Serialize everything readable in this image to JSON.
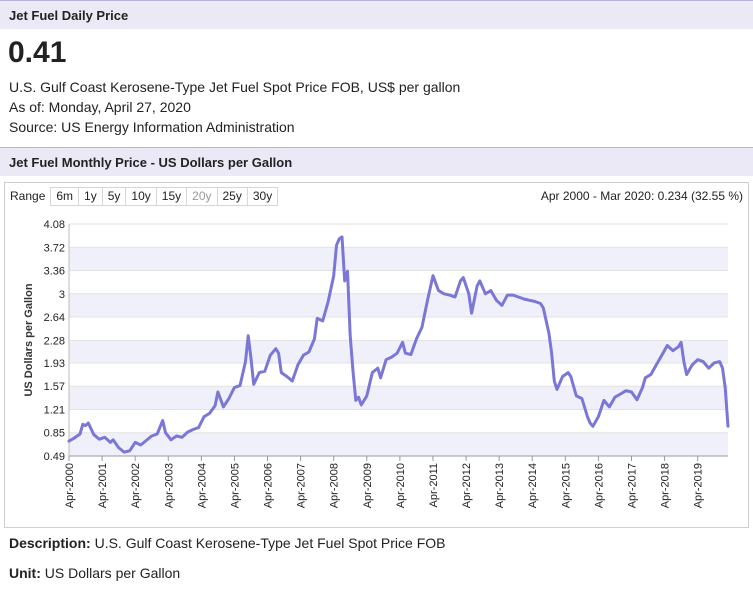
{
  "daily": {
    "header": "Jet Fuel Daily Price",
    "price": "0.41",
    "description": "U.S. Gulf Coast Kerosene-Type Jet Fuel Spot Price FOB, US$ per gallon",
    "as_of": "As of: Monday, April 27, 2020",
    "source": "Source: US Energy Information Administration"
  },
  "monthly": {
    "header": "Jet Fuel Monthly Price - US Dollars per Gallon",
    "range_label": "Range",
    "range_buttons": [
      "6m",
      "1y",
      "5y",
      "10y",
      "15y",
      "20y",
      "25y",
      "30y"
    ],
    "range_summary": "Apr 2000 - Mar 2020: 0.234 (32.55 %)"
  },
  "footer": {
    "description_label": "Description:",
    "description_value": "U.S. Gulf Coast Kerosene-Type Jet Fuel Spot Price FOB",
    "unit_label": "Unit:",
    "unit_value": "US Dollars per Gallon"
  },
  "colors": {
    "line": "#7b77d6",
    "band": "#f0f0fa",
    "header_bg": "#ebe9f5"
  },
  "chart_data": {
    "type": "line",
    "title": "",
    "xlabel": "",
    "ylabel": "US Dollars per Gallon",
    "ylim": [
      0.49,
      4.08
    ],
    "yticks": [
      "0.49",
      "0.85",
      "1.21",
      "1.57",
      "1.93",
      "2.28",
      "2.64",
      "3",
      "3.36",
      "3.72",
      "4.08"
    ],
    "xticks": [
      "Apr-2000",
      "Apr-2001",
      "Apr-2002",
      "Apr-2003",
      "Apr-2004",
      "Apr-2005",
      "Apr-2006",
      "Apr-2007",
      "Apr-2008",
      "Apr-2009",
      "Apr-2010",
      "Apr-2011",
      "Apr-2012",
      "Apr-2013",
      "Apr-2014",
      "Apr-2015",
      "Apr-2016",
      "Apr-2017",
      "Apr-2018",
      "Apr-2019"
    ],
    "x_range": [
      "2000-04",
      "2020-03"
    ],
    "grid": "horizontal bands",
    "series": [
      {
        "points": [
          [
            "2000-04",
            0.72
          ],
          [
            "2000-06",
            0.77
          ],
          [
            "2000-08",
            0.83
          ],
          [
            "2000-09",
            0.98
          ],
          [
            "2000-10",
            0.96
          ],
          [
            "2000-11",
            1.0
          ],
          [
            "2001-01",
            0.82
          ],
          [
            "2001-03",
            0.75
          ],
          [
            "2001-05",
            0.78
          ],
          [
            "2001-07",
            0.7
          ],
          [
            "2001-08",
            0.74
          ],
          [
            "2001-10",
            0.62
          ],
          [
            "2001-12",
            0.55
          ],
          [
            "2002-02",
            0.57
          ],
          [
            "2002-04",
            0.7
          ],
          [
            "2002-06",
            0.66
          ],
          [
            "2002-08",
            0.73
          ],
          [
            "2002-10",
            0.8
          ],
          [
            "2002-12",
            0.83
          ],
          [
            "2003-02",
            1.04
          ],
          [
            "2003-03",
            0.85
          ],
          [
            "2003-05",
            0.74
          ],
          [
            "2003-07",
            0.8
          ],
          [
            "2003-09",
            0.78
          ],
          [
            "2003-11",
            0.86
          ],
          [
            "2004-01",
            0.9
          ],
          [
            "2004-03",
            0.93
          ],
          [
            "2004-05",
            1.1
          ],
          [
            "2004-07",
            1.15
          ],
          [
            "2004-09",
            1.27
          ],
          [
            "2004-10",
            1.48
          ],
          [
            "2004-12",
            1.25
          ],
          [
            "2005-02",
            1.38
          ],
          [
            "2005-04",
            1.55
          ],
          [
            "2005-06",
            1.58
          ],
          [
            "2005-08",
            1.95
          ],
          [
            "2005-09",
            2.35
          ],
          [
            "2005-10",
            2.0
          ],
          [
            "2005-11",
            1.6
          ],
          [
            "2006-01",
            1.78
          ],
          [
            "2006-03",
            1.8
          ],
          [
            "2006-05",
            2.05
          ],
          [
            "2006-07",
            2.15
          ],
          [
            "2006-08",
            2.08
          ],
          [
            "2006-09",
            1.78
          ],
          [
            "2006-11",
            1.72
          ],
          [
            "2007-01",
            1.65
          ],
          [
            "2007-03",
            1.9
          ],
          [
            "2007-05",
            2.05
          ],
          [
            "2007-07",
            2.1
          ],
          [
            "2007-09",
            2.3
          ],
          [
            "2007-10",
            2.62
          ],
          [
            "2007-12",
            2.58
          ],
          [
            "2008-02",
            2.88
          ],
          [
            "2008-04",
            3.28
          ],
          [
            "2008-05",
            3.75
          ],
          [
            "2008-06",
            3.85
          ],
          [
            "2008-07",
            3.88
          ],
          [
            "2008-08",
            3.2
          ],
          [
            "2008-09",
            3.35
          ],
          [
            "2008-10",
            2.35
          ],
          [
            "2008-11",
            1.8
          ],
          [
            "2008-12",
            1.35
          ],
          [
            "2009-01",
            1.4
          ],
          [
            "2009-02",
            1.28
          ],
          [
            "2009-04",
            1.42
          ],
          [
            "2009-06",
            1.78
          ],
          [
            "2009-08",
            1.85
          ],
          [
            "2009-09",
            1.7
          ],
          [
            "2009-11",
            1.98
          ],
          [
            "2010-01",
            2.02
          ],
          [
            "2010-03",
            2.08
          ],
          [
            "2010-05",
            2.25
          ],
          [
            "2010-06",
            2.08
          ],
          [
            "2010-08",
            2.06
          ],
          [
            "2010-10",
            2.3
          ],
          [
            "2010-12",
            2.48
          ],
          [
            "2011-02",
            2.9
          ],
          [
            "2011-04",
            3.28
          ],
          [
            "2011-06",
            3.05
          ],
          [
            "2011-08",
            3.0
          ],
          [
            "2011-10",
            2.98
          ],
          [
            "2011-12",
            2.95
          ],
          [
            "2012-02",
            3.2
          ],
          [
            "2012-03",
            3.25
          ],
          [
            "2012-05",
            3.0
          ],
          [
            "2012-06",
            2.7
          ],
          [
            "2012-08",
            3.12
          ],
          [
            "2012-09",
            3.2
          ],
          [
            "2012-11",
            3.0
          ],
          [
            "2013-01",
            3.05
          ],
          [
            "2013-03",
            2.9
          ],
          [
            "2013-05",
            2.82
          ],
          [
            "2013-07",
            2.98
          ],
          [
            "2013-09",
            2.98
          ],
          [
            "2013-11",
            2.95
          ],
          [
            "2014-01",
            2.92
          ],
          [
            "2014-03",
            2.9
          ],
          [
            "2014-05",
            2.88
          ],
          [
            "2014-07",
            2.85
          ],
          [
            "2014-08",
            2.78
          ],
          [
            "2014-10",
            2.4
          ],
          [
            "2014-11",
            2.1
          ],
          [
            "2014-12",
            1.65
          ],
          [
            "2015-01",
            1.52
          ],
          [
            "2015-03",
            1.72
          ],
          [
            "2015-05",
            1.78
          ],
          [
            "2015-06",
            1.72
          ],
          [
            "2015-08",
            1.42
          ],
          [
            "2015-10",
            1.38
          ],
          [
            "2015-12",
            1.1
          ],
          [
            "2016-01",
            1.0
          ],
          [
            "2016-02",
            0.95
          ],
          [
            "2016-04",
            1.1
          ],
          [
            "2016-06",
            1.35
          ],
          [
            "2016-08",
            1.25
          ],
          [
            "2016-10",
            1.4
          ],
          [
            "2016-12",
            1.45
          ],
          [
            "2017-02",
            1.5
          ],
          [
            "2017-04",
            1.48
          ],
          [
            "2017-06",
            1.36
          ],
          [
            "2017-08",
            1.55
          ],
          [
            "2017-09",
            1.7
          ],
          [
            "2017-11",
            1.75
          ],
          [
            "2018-01",
            1.9
          ],
          [
            "2018-03",
            2.05
          ],
          [
            "2018-05",
            2.2
          ],
          [
            "2018-07",
            2.12
          ],
          [
            "2018-09",
            2.18
          ],
          [
            "2018-10",
            2.25
          ],
          [
            "2018-11",
            1.95
          ],
          [
            "2018-12",
            1.75
          ],
          [
            "2019-02",
            1.9
          ],
          [
            "2019-04",
            1.98
          ],
          [
            "2019-06",
            1.95
          ],
          [
            "2019-08",
            1.85
          ],
          [
            "2019-10",
            1.93
          ],
          [
            "2019-12",
            1.95
          ],
          [
            "2020-01",
            1.85
          ],
          [
            "2020-02",
            1.55
          ],
          [
            "2020-03",
            0.95
          ]
        ]
      }
    ]
  }
}
